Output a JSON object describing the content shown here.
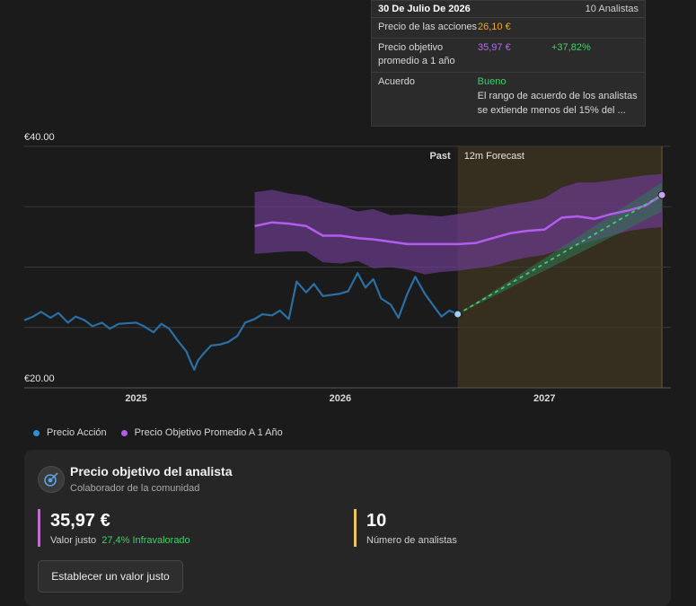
{
  "tooltip": {
    "date": "30 De Julio De 2026",
    "analysts": "10 Analistas",
    "rows": [
      {
        "label": "Precio de las acciones",
        "value": "26,10 €",
        "value_color": "#f5a623",
        "extra": ""
      },
      {
        "label": "Precio objetivo promedio a 1 año",
        "value": "35,97 €",
        "value_color": "#b26cf0",
        "extra": "+37,82%",
        "extra_color": "#3fcf6a"
      },
      {
        "label": "Acuerdo",
        "value": "Bueno",
        "value_color": "#3fcf6a",
        "extra": "El rango de acuerdo de los analistas se extiende menos del 15% del ..."
      }
    ]
  },
  "legend": [
    {
      "label": "Precio Acción",
      "color": "#2f8fd8"
    },
    {
      "label": "Precio Objetivo Promedio A 1 Año",
      "color": "#b45cf0"
    }
  ],
  "card": {
    "icon": "analyst-target-icon",
    "title": "Precio objetivo del analista",
    "subtitle": "Colaborador de la comunidad",
    "fair_value": "35,97 €",
    "fair_value_label": "Valor justo",
    "fair_value_note": "27,4% Infravalorado",
    "analysts_count": "10",
    "analysts_label": "Número de analistas",
    "button_label": "Establecer un valor justo"
  },
  "chart_data": {
    "type": "line",
    "y_labels": {
      "top": "€40.00",
      "bottom": "€20.00"
    },
    "ylim": [
      20,
      40
    ],
    "xlim": [
      "2024-06-15",
      "2027-08-15"
    ],
    "x_ticks": [
      {
        "label": "2025",
        "date": "2025-01-01"
      },
      {
        "label": "2026",
        "date": "2026-01-01"
      },
      {
        "label": "2027",
        "date": "2027-01-01"
      }
    ],
    "past_label": "Past",
    "forecast_label": "12m Forecast",
    "split_date": "2026-07-30",
    "forecast_end": "2027-07-30",
    "colors": {
      "price": "#2a6fa3",
      "target": "#b45cf0",
      "band": "#6b3c8f",
      "forecast_bg": "#3b3120",
      "forecast_line": "#3fcf6a"
    },
    "series": [
      {
        "name": "Precio Acción",
        "points": [
          [
            "2024-06-15",
            25.6
          ],
          [
            "2024-07-01",
            25.9
          ],
          [
            "2024-07-15",
            26.3
          ],
          [
            "2024-08-01",
            25.8
          ],
          [
            "2024-08-15",
            26.2
          ],
          [
            "2024-09-01",
            25.4
          ],
          [
            "2024-09-15",
            25.9
          ],
          [
            "2024-10-01",
            25.6
          ],
          [
            "2024-10-15",
            25.1
          ],
          [
            "2024-11-01",
            25.4
          ],
          [
            "2024-11-15",
            24.9
          ],
          [
            "2024-12-01",
            25.3
          ],
          [
            "2025-01-01",
            25.4
          ],
          [
            "2025-01-15",
            25.1
          ],
          [
            "2025-02-01",
            24.6
          ],
          [
            "2025-02-15",
            25.3
          ],
          [
            "2025-03-01",
            24.9
          ],
          [
            "2025-03-15",
            24.0
          ],
          [
            "2025-04-01",
            23.0
          ],
          [
            "2025-04-08",
            22.2
          ],
          [
            "2025-04-15",
            21.5
          ],
          [
            "2025-04-22",
            22.3
          ],
          [
            "2025-05-01",
            22.8
          ],
          [
            "2025-05-15",
            23.5
          ],
          [
            "2025-06-01",
            23.6
          ],
          [
            "2025-06-15",
            23.8
          ],
          [
            "2025-07-01",
            24.3
          ],
          [
            "2025-07-15",
            25.4
          ],
          [
            "2025-08-01",
            25.7
          ],
          [
            "2025-08-15",
            26.1
          ],
          [
            "2025-09-01",
            26.0
          ],
          [
            "2025-09-15",
            26.4
          ],
          [
            "2025-10-01",
            25.7
          ],
          [
            "2025-10-15",
            28.8
          ],
          [
            "2025-11-01",
            27.9
          ],
          [
            "2025-11-15",
            28.6
          ],
          [
            "2025-12-01",
            27.6
          ],
          [
            "2026-01-01",
            27.8
          ],
          [
            "2026-01-15",
            28.0
          ],
          [
            "2026-02-01",
            29.5
          ],
          [
            "2026-02-15",
            28.3
          ],
          [
            "2026-03-01",
            29.0
          ],
          [
            "2026-03-15",
            27.4
          ],
          [
            "2026-04-01",
            26.9
          ],
          [
            "2026-04-15",
            25.8
          ],
          [
            "2026-05-01",
            27.8
          ],
          [
            "2026-05-15",
            29.2
          ],
          [
            "2026-06-01",
            27.8
          ],
          [
            "2026-06-15",
            26.9
          ],
          [
            "2026-07-01",
            25.9
          ],
          [
            "2026-07-15",
            26.4
          ],
          [
            "2026-07-30",
            26.1
          ]
        ]
      },
      {
        "name": "Precio Objetivo Promedio A 1 Año",
        "points": [
          [
            "2025-08-01",
            33.4
          ],
          [
            "2025-09-01",
            33.7
          ],
          [
            "2025-10-01",
            33.6
          ],
          [
            "2025-11-01",
            33.4
          ],
          [
            "2025-12-01",
            32.6
          ],
          [
            "2026-01-01",
            32.6
          ],
          [
            "2026-02-01",
            32.4
          ],
          [
            "2026-03-01",
            32.3
          ],
          [
            "2026-04-01",
            32.1
          ],
          [
            "2026-05-01",
            31.9
          ],
          [
            "2026-06-01",
            31.9
          ],
          [
            "2026-07-01",
            31.9
          ],
          [
            "2026-08-01",
            31.9
          ],
          [
            "2026-09-01",
            32.0
          ],
          [
            "2026-10-01",
            32.4
          ],
          [
            "2026-11-01",
            32.8
          ],
          [
            "2026-12-01",
            33.0
          ],
          [
            "2027-01-01",
            33.1
          ],
          [
            "2027-02-01",
            34.1
          ],
          [
            "2027-03-01",
            34.2
          ],
          [
            "2027-04-01",
            34.0
          ],
          [
            "2027-05-01",
            34.4
          ],
          [
            "2027-06-01",
            34.7
          ],
          [
            "2027-07-01",
            35.1
          ],
          [
            "2027-07-30",
            35.97
          ]
        ],
        "band_high": [
          36.2,
          36.4,
          36.1,
          35.9,
          35.4,
          35.1,
          34.6,
          34.8,
          34.3,
          34.4,
          34.3,
          34.2,
          34.4,
          34.6,
          34.9,
          35.2,
          35.4,
          35.7,
          36.6,
          37.0,
          37.0,
          37.2,
          37.4,
          37.6,
          37.7
        ],
        "band_low": [
          31.1,
          31.2,
          31.3,
          31.3,
          30.4,
          30.3,
          30.5,
          29.9,
          30.0,
          29.8,
          29.4,
          29.6,
          29.7,
          29.9,
          30.1,
          30.5,
          30.8,
          31.0,
          31.5,
          31.8,
          32.2,
          32.6,
          33.0,
          33.2,
          33.3
        ]
      }
    ],
    "forecast": {
      "start": [
        "2026-07-30",
        26.1
      ],
      "end": [
        "2027-07-30",
        35.97
      ],
      "cone_high_end": 37.0,
      "cone_low_end": 34.6
    }
  }
}
